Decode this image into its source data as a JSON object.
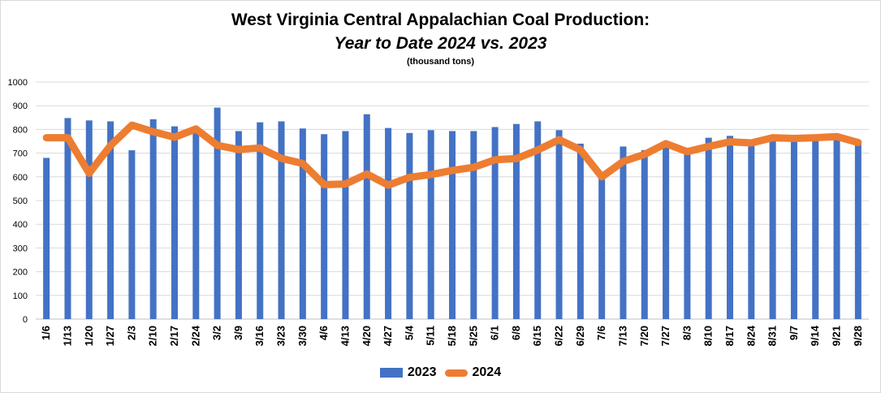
{
  "chart_data": {
    "type": "bar",
    "title": "West Virginia Central Appalachian Coal Production:",
    "subtitle": "Year to Date 2024 vs. 2023",
    "unit_note": "(thousand tons)",
    "ylim": [
      0,
      1000
    ],
    "yticks": [
      "0",
      "100",
      "200",
      "300",
      "400",
      "500",
      "600",
      "700",
      "800",
      "900",
      "1000"
    ],
    "grid": true,
    "legend_position": "bottom",
    "categories": [
      "1/6",
      "1/13",
      "1/20",
      "1/27",
      "2/3",
      "2/10",
      "2/17",
      "2/24",
      "3/2",
      "3/9",
      "3/16",
      "3/23",
      "3/30",
      "4/6",
      "4/13",
      "4/20",
      "4/27",
      "5/4",
      "5/11",
      "5/18",
      "5/25",
      "6/1",
      "6/8",
      "6/15",
      "6/22",
      "6/29",
      "7/6",
      "7/13",
      "7/20",
      "7/27",
      "8/3",
      "8/10",
      "8/17",
      "8/24",
      "8/31",
      "9/7",
      "9/14",
      "9/21",
      "9/28"
    ],
    "series": [
      {
        "name": "2023",
        "kind": "bar",
        "color": "#4472C4",
        "values": [
          680,
          848,
          838,
          834,
          712,
          843,
          813,
          785,
          892,
          793,
          830,
          834,
          804,
          780,
          793,
          864,
          806,
          785,
          797,
          793,
          793,
          810,
          823,
          834,
          797,
          740,
          600,
          728,
          713,
          730,
          715,
          765,
          773,
          755,
          760,
          757,
          762,
          764,
          748
        ]
      },
      {
        "name": "2024",
        "kind": "line",
        "color": "#ED7D31",
        "values": [
          765,
          765,
          615,
          732,
          818,
          790,
          767,
          802,
          733,
          715,
          722,
          678,
          656,
          567,
          570,
          612,
          565,
          598,
          610,
          627,
          640,
          672,
          677,
          713,
          757,
          714,
          600,
          665,
          695,
          740,
          706,
          728,
          748,
          743,
          765,
          762,
          765,
          770,
          745
        ]
      }
    ]
  }
}
